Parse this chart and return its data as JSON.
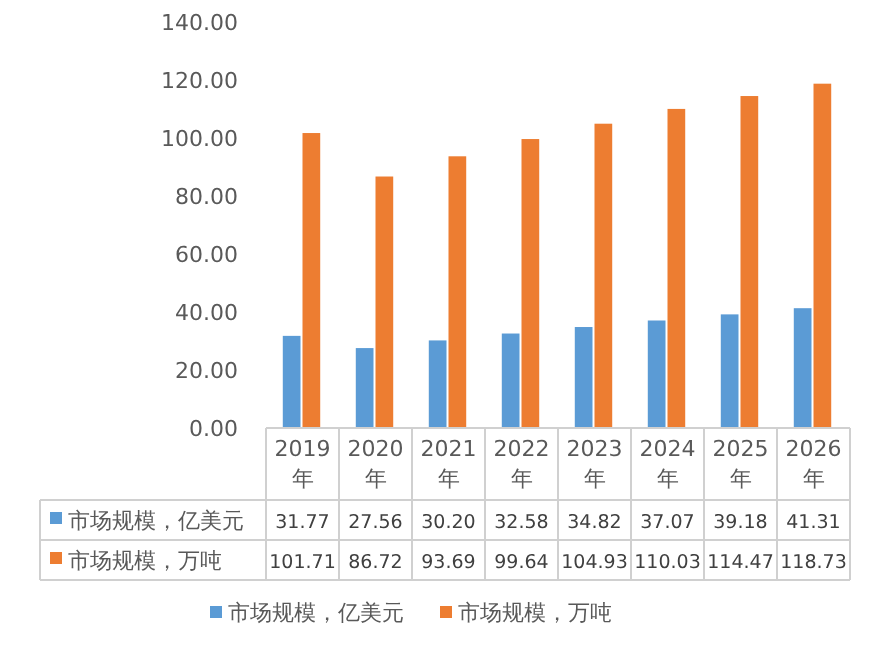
{
  "chart_data": {
    "type": "bar",
    "categories": [
      "2019年",
      "2020年",
      "2021年",
      "2022年",
      "2023年",
      "2024年",
      "2025年",
      "2026年"
    ],
    "series": [
      {
        "name": "市场规模，亿美元",
        "color": "#5b9bd5",
        "values": [
          31.77,
          27.56,
          30.2,
          32.58,
          34.82,
          37.07,
          39.18,
          41.31
        ],
        "value_labels": [
          "31.77",
          "27.56",
          "30.20",
          "32.58",
          "34.82",
          "37.07",
          "39.18",
          "41.31"
        ]
      },
      {
        "name": "市场规模，万吨",
        "color": "#ed7d31",
        "values": [
          101.71,
          86.72,
          93.69,
          99.64,
          104.93,
          110.03,
          114.47,
          118.73
        ],
        "value_labels": [
          "101.71",
          "86.72",
          "93.69",
          "99.64",
          "104.93",
          "110.03",
          "114.47",
          "118.73"
        ]
      }
    ],
    "ylim": [
      0,
      140
    ],
    "yticks": [
      {
        "value": 0,
        "label": "0.00"
      },
      {
        "value": 20,
        "label": "20.00"
      },
      {
        "value": 40,
        "label": "40.00"
      },
      {
        "value": 60,
        "label": "60.00"
      },
      {
        "value": 80,
        "label": "80.00"
      },
      {
        "value": 100,
        "label": "100.00"
      },
      {
        "value": 120,
        "label": "120.00"
      },
      {
        "value": 140,
        "label": "140.00"
      }
    ],
    "legend": "bottom"
  }
}
